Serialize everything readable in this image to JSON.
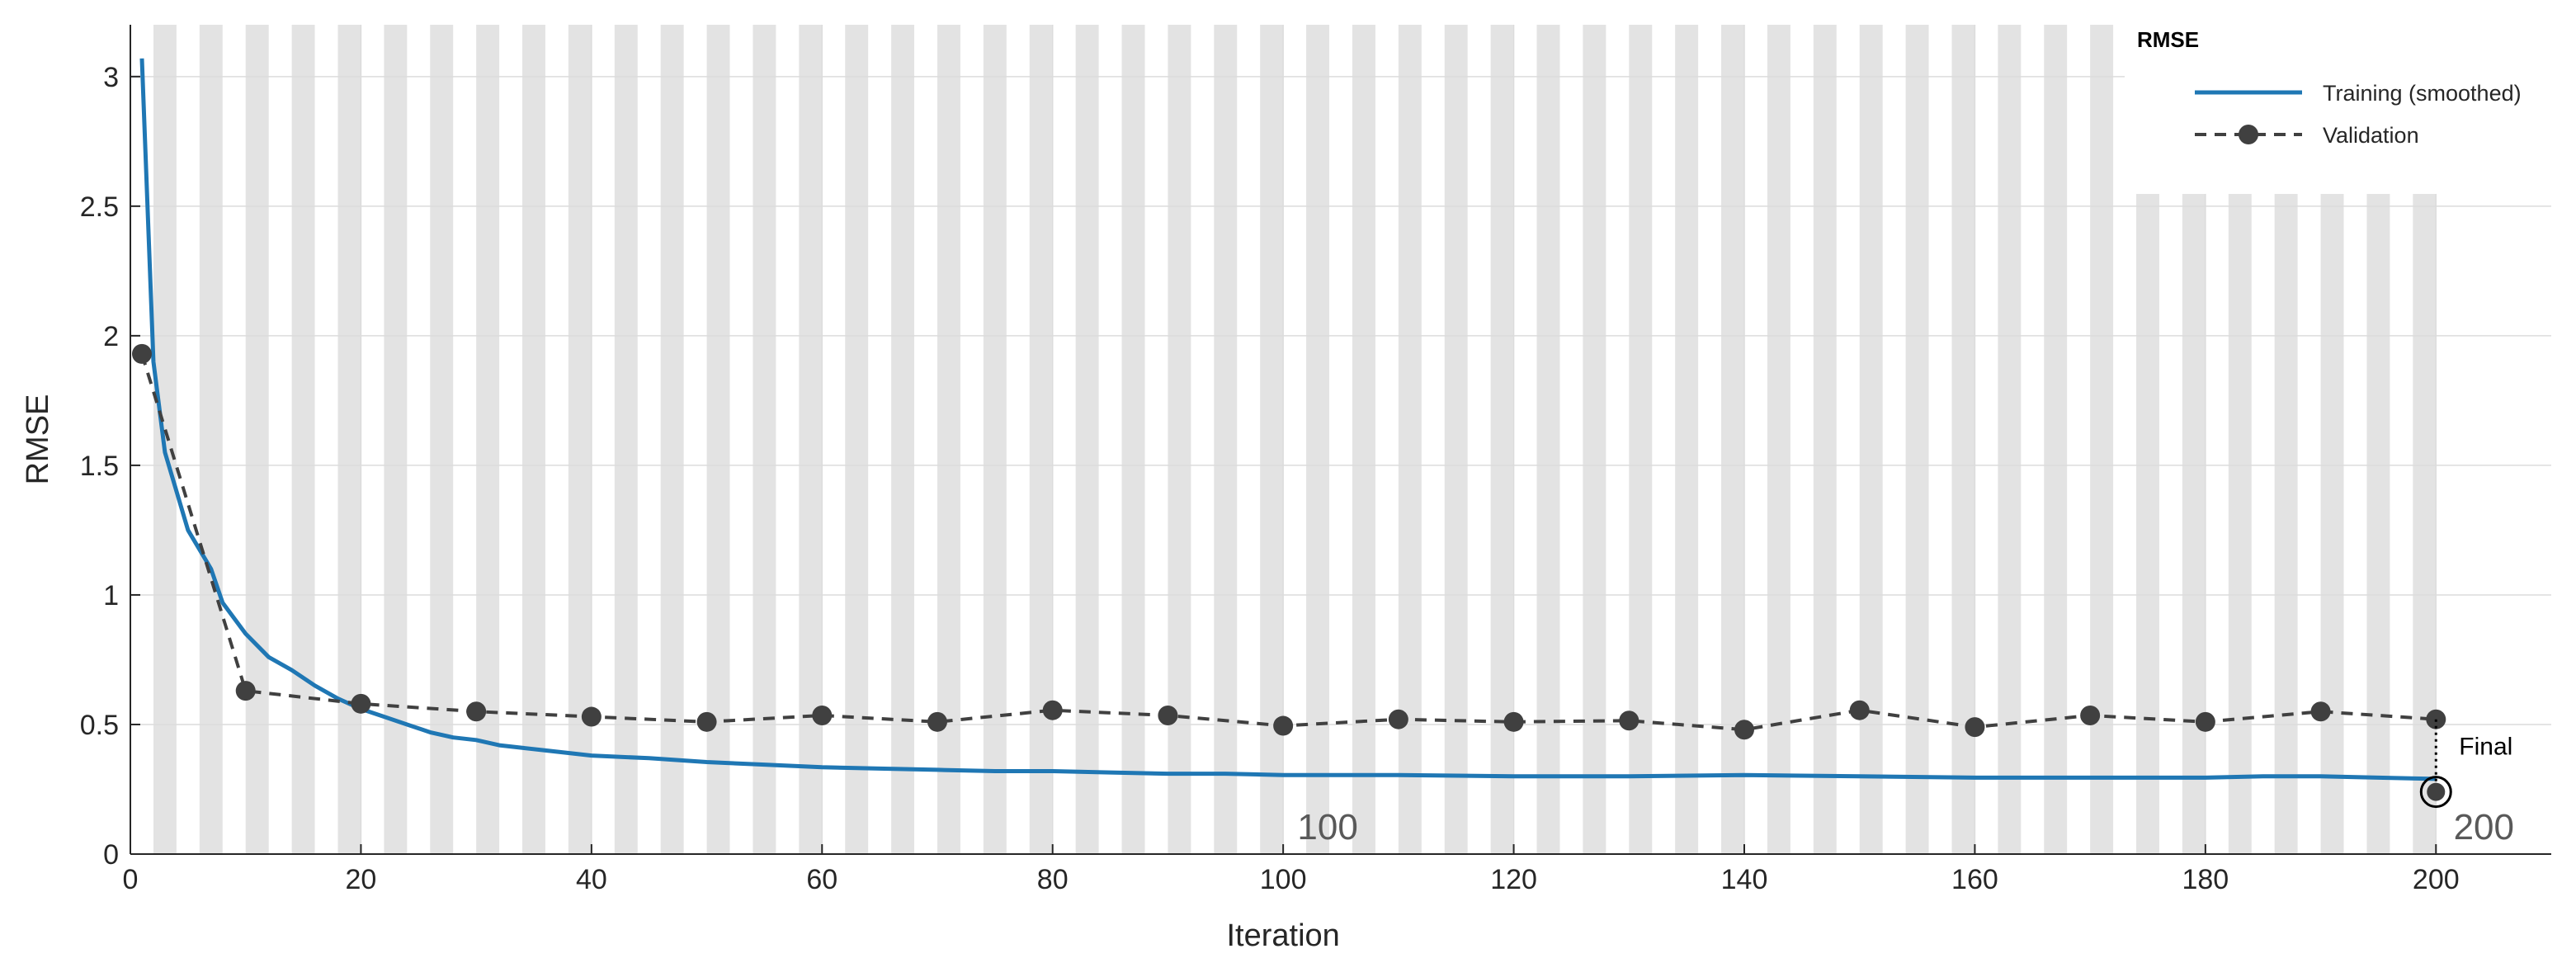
{
  "chart_data": {
    "type": "line",
    "xlabel": "Iteration",
    "ylabel": "RMSE",
    "xlim": [
      0,
      210
    ],
    "ylim": [
      0,
      3.2
    ],
    "xticks": [
      0,
      20,
      40,
      60,
      80,
      100,
      120,
      140,
      160,
      180,
      200
    ],
    "yticks": [
      0,
      0.5,
      1,
      1.5,
      2,
      2.5,
      3
    ],
    "ytick_labels": [
      "0",
      "0.5",
      "1",
      "1.5",
      "2",
      "2.5",
      "3"
    ],
    "grid": true,
    "legend": {
      "title": "RMSE",
      "placement": "top-right",
      "entries": [
        "Training (smoothed)",
        "Validation"
      ]
    },
    "colors": {
      "training": "#1f77b4",
      "validation": "#404040",
      "epoch_band": "#e3e3e3",
      "grid": "#dcdcdc"
    },
    "epoch_band_iterations": 2,
    "epoch_labels": [
      {
        "x": 100,
        "text": "100"
      },
      {
        "x": 200,
        "text": "200"
      }
    ],
    "final_label": "Final",
    "series": [
      {
        "name": "Training (smoothed)",
        "style": "solid",
        "x": [
          1,
          2,
          3,
          5,
          7,
          8,
          10,
          12,
          14,
          16,
          18,
          20,
          22,
          24,
          26,
          28,
          30,
          32,
          34,
          36,
          38,
          40,
          45,
          50,
          55,
          60,
          65,
          70,
          75,
          80,
          85,
          90,
          95,
          100,
          110,
          120,
          130,
          140,
          150,
          160,
          170,
          180,
          185,
          190,
          195,
          200
        ],
        "y": [
          3.07,
          1.9,
          1.55,
          1.25,
          1.1,
          0.97,
          0.85,
          0.76,
          0.71,
          0.65,
          0.6,
          0.56,
          0.53,
          0.5,
          0.47,
          0.45,
          0.44,
          0.42,
          0.41,
          0.4,
          0.39,
          0.38,
          0.37,
          0.355,
          0.345,
          0.335,
          0.33,
          0.325,
          0.32,
          0.32,
          0.315,
          0.31,
          0.31,
          0.305,
          0.305,
          0.3,
          0.3,
          0.305,
          0.3,
          0.295,
          0.295,
          0.295,
          0.3,
          0.3,
          0.295,
          0.29
        ]
      },
      {
        "name": "Validation",
        "style": "dashed",
        "x": [
          1,
          10,
          20,
          30,
          40,
          50,
          60,
          70,
          80,
          90,
          100,
          110,
          120,
          130,
          140,
          150,
          160,
          170,
          180,
          190,
          200
        ],
        "y": [
          1.93,
          0.63,
          0.58,
          0.55,
          0.53,
          0.51,
          0.535,
          0.51,
          0.555,
          0.535,
          0.495,
          0.52,
          0.51,
          0.515,
          0.48,
          0.555,
          0.49,
          0.535,
          0.51,
          0.55,
          0.52
        ]
      }
    ],
    "final_point": {
      "x": 200,
      "y": 0.24
    }
  }
}
